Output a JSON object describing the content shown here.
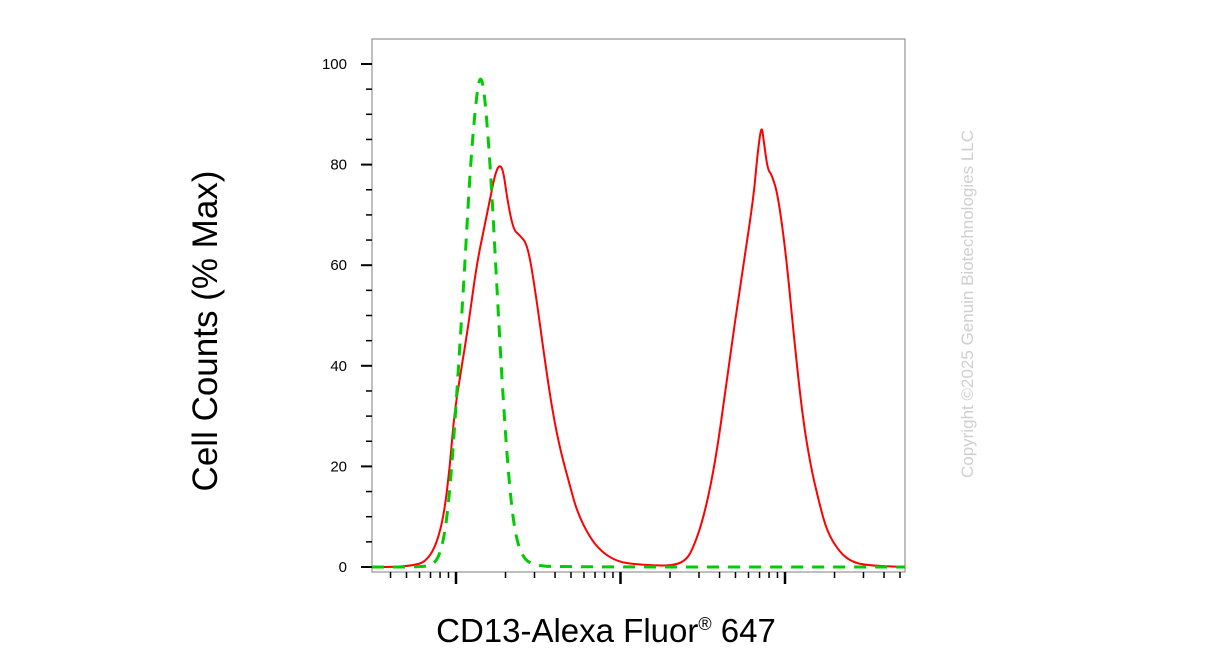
{
  "chart_data": {
    "type": "line",
    "xlabel": "CD13-Alexa Fluor",
    "xlabel_sup": "®",
    "xlabel_suffix": " 647",
    "ylabel": "Cell Counts (% Max)",
    "x_scale": "log",
    "x_tick_labels": [],
    "ylim": [
      0,
      105
    ],
    "y_ticks": [
      0,
      20,
      40,
      60,
      80,
      100
    ],
    "y_tick_labels": [
      "0",
      "20",
      "40",
      "60",
      "80",
      "100"
    ],
    "grid": false,
    "legend": "none",
    "series": [
      {
        "color": "#ff0000",
        "style": "solid",
        "points": [
          [
            0.0,
            0
          ],
          [
            0.05,
            0
          ],
          [
            0.1,
            0.3
          ],
          [
            0.13,
            1
          ],
          [
            0.155,
            4
          ],
          [
            0.175,
            10
          ],
          [
            0.19,
            20
          ],
          [
            0.2,
            30
          ],
          [
            0.215,
            38
          ],
          [
            0.235,
            48
          ],
          [
            0.255,
            60
          ],
          [
            0.275,
            68
          ],
          [
            0.29,
            74
          ],
          [
            0.3,
            78
          ],
          [
            0.31,
            80
          ],
          [
            0.32,
            79
          ],
          [
            0.33,
            73
          ],
          [
            0.345,
            67
          ],
          [
            0.36,
            66
          ],
          [
            0.38,
            64
          ],
          [
            0.4,
            54
          ],
          [
            0.42,
            42
          ],
          [
            0.44,
            31
          ],
          [
            0.46,
            23
          ],
          [
            0.48,
            17
          ],
          [
            0.5,
            11
          ],
          [
            0.53,
            6
          ],
          [
            0.56,
            3
          ],
          [
            0.6,
            1
          ],
          [
            0.65,
            0.5
          ],
          [
            0.7,
            0.3
          ],
          [
            0.73,
            0.3
          ],
          [
            0.76,
            1
          ],
          [
            0.78,
            3
          ],
          [
            0.81,
            10
          ],
          [
            0.84,
            22
          ],
          [
            0.87,
            40
          ],
          [
            0.9,
            57
          ],
          [
            0.93,
            73
          ],
          [
            0.94,
            82
          ],
          [
            0.95,
            88
          ],
          [
            0.955,
            85
          ],
          [
            0.965,
            79
          ],
          [
            0.975,
            78
          ],
          [
            0.99,
            74
          ],
          [
            1.01,
            62
          ],
          [
            1.03,
            45
          ],
          [
            1.05,
            30
          ],
          [
            1.07,
            20
          ],
          [
            1.09,
            13
          ],
          [
            1.11,
            7
          ],
          [
            1.14,
            3
          ],
          [
            1.17,
            1
          ],
          [
            1.21,
            0.3
          ],
          [
            1.3,
            0
          ]
        ]
      },
      {
        "color": "#00cc00",
        "style": "dashed",
        "points": [
          [
            0.0,
            0
          ],
          [
            0.12,
            0
          ],
          [
            0.155,
            0.5
          ],
          [
            0.175,
            5
          ],
          [
            0.19,
            15
          ],
          [
            0.205,
            32
          ],
          [
            0.225,
            58
          ],
          [
            0.24,
            80
          ],
          [
            0.255,
            94
          ],
          [
            0.265,
            98
          ],
          [
            0.275,
            94
          ],
          [
            0.29,
            78
          ],
          [
            0.305,
            55
          ],
          [
            0.32,
            33
          ],
          [
            0.335,
            16
          ],
          [
            0.35,
            6
          ],
          [
            0.37,
            1.5
          ],
          [
            0.4,
            0.3
          ],
          [
            0.45,
            0
          ],
          [
            1.3,
            0
          ]
        ]
      }
    ]
  },
  "watermark": "Copyright ©2025 Genuin Biotechnologies LLC"
}
